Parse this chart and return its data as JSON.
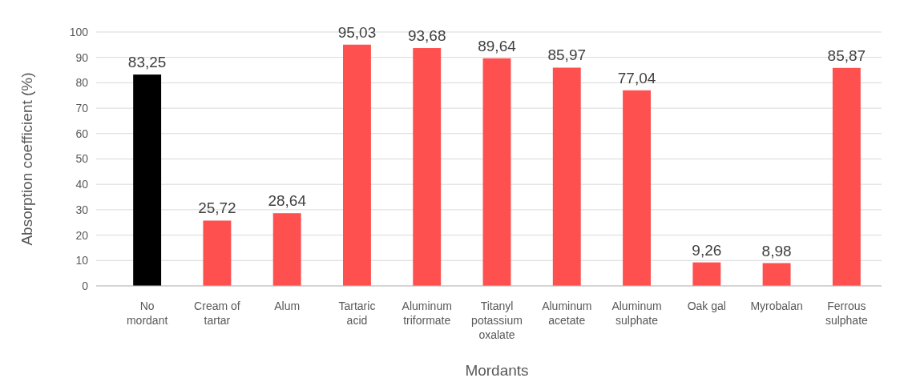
{
  "chart_data": {
    "type": "bar",
    "xlabel": "Mordants",
    "ylabel": "Absorption coefficient (%)",
    "categories": [
      "No mordant",
      "Cream of tartar",
      "Alum",
      "Tartaric acid",
      "Aluminum triformate",
      "Titanyl potassium oxalate",
      "Aluminum acetate",
      "Aluminum sulphate",
      "Oak gal",
      "Myrobalan",
      "Ferrous sulphate"
    ],
    "values": [
      83.25,
      25.72,
      28.64,
      95.03,
      93.68,
      89.64,
      85.97,
      77.04,
      9.26,
      8.98,
      85.87
    ],
    "value_labels": [
      "83,25",
      "25,72",
      "28,64",
      "95,03",
      "93,68",
      "89,64",
      "85,97",
      "77,04",
      "9,26",
      "8,98",
      "85,87"
    ],
    "colors": [
      "#000000",
      "#ff5050",
      "#ff5050",
      "#ff5050",
      "#ff5050",
      "#ff5050",
      "#ff5050",
      "#ff5050",
      "#ff5050",
      "#ff5050",
      "#ff5050"
    ],
    "ylim": [
      0,
      100
    ],
    "yticks": [
      0,
      10,
      20,
      30,
      40,
      50,
      60,
      70,
      80,
      90,
      100
    ],
    "grid": "y"
  }
}
